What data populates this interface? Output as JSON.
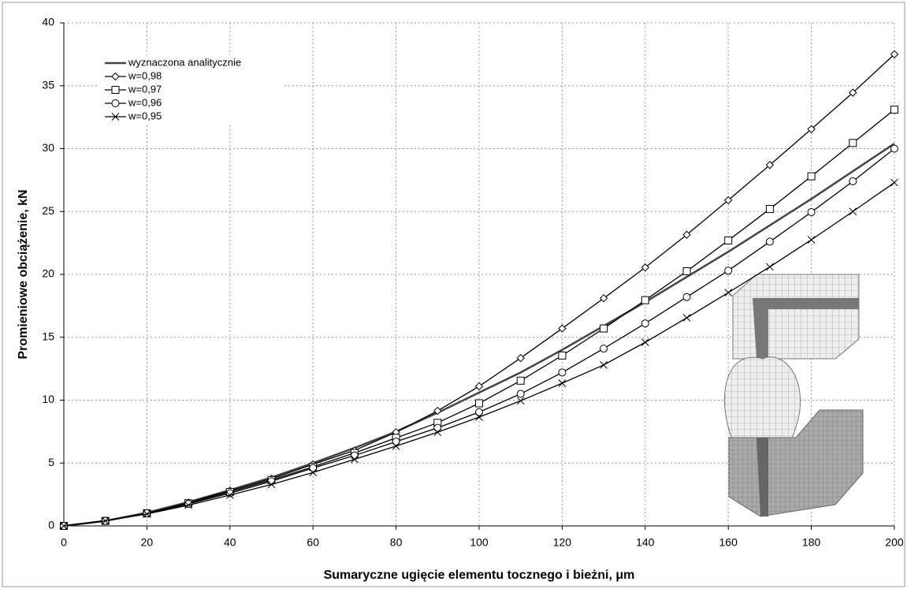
{
  "chart_data": {
    "type": "line",
    "xlabel": "Sumaryczne ugięcie elementu tocznego i bieżni, μm",
    "ylabel": "Promieniowe obciążenie, kN",
    "x": [
      0,
      10,
      20,
      30,
      40,
      50,
      60,
      70,
      80,
      90,
      100,
      110,
      120,
      130,
      140,
      150,
      160,
      170,
      180,
      190,
      200
    ],
    "xlim": [
      0,
      200
    ],
    "xticks": [
      0,
      20,
      40,
      60,
      80,
      100,
      120,
      140,
      160,
      180,
      200
    ],
    "ylim": [
      0,
      40
    ],
    "yticks": [
      0,
      5,
      10,
      15,
      20,
      25,
      30,
      35,
      40
    ],
    "grid": true,
    "legend": "upper left",
    "series": [
      {
        "name": "wyznaczona analitycznie",
        "color": "#444444",
        "marker": "none",
        "values": [
          0,
          0.4,
          1.05,
          1.9,
          2.85,
          3.85,
          5.0,
          6.2,
          7.5,
          9.0,
          10.6,
          12.2,
          14.0,
          15.9,
          17.8,
          19.8,
          21.8,
          23.9,
          26.0,
          28.2,
          30.4
        ]
      },
      {
        "name": "w=0,98",
        "color": "#000000",
        "marker": "diamond",
        "values": [
          0,
          0.4,
          1.0,
          1.85,
          2.8,
          3.75,
          4.9,
          6.0,
          7.45,
          9.15,
          11.1,
          13.35,
          15.7,
          18.1,
          20.55,
          23.15,
          25.9,
          28.7,
          31.55,
          34.45,
          37.5
        ]
      },
      {
        "name": "w=0,97",
        "color": "#000000",
        "marker": "square",
        "values": [
          0,
          0.4,
          1.0,
          1.8,
          2.7,
          3.65,
          4.7,
          5.8,
          7.0,
          8.2,
          9.75,
          11.55,
          13.55,
          15.7,
          17.95,
          20.25,
          22.7,
          25.2,
          27.8,
          30.45,
          33.1
        ]
      },
      {
        "name": "w=0,96",
        "color": "#000000",
        "marker": "circle",
        "values": [
          0,
          0.4,
          1.0,
          1.75,
          2.6,
          3.55,
          4.6,
          5.6,
          6.7,
          7.8,
          9.05,
          10.5,
          12.2,
          14.1,
          16.1,
          18.2,
          20.3,
          22.6,
          24.95,
          27.4,
          30.0
        ]
      },
      {
        "name": "w=0,95",
        "color": "#000000",
        "marker": "x",
        "values": [
          0,
          0.4,
          0.95,
          1.65,
          2.45,
          3.3,
          4.25,
          5.3,
          6.35,
          7.45,
          8.65,
          9.95,
          11.35,
          12.8,
          14.6,
          16.55,
          18.55,
          20.6,
          22.75,
          25.0,
          27.3
        ]
      }
    ]
  }
}
